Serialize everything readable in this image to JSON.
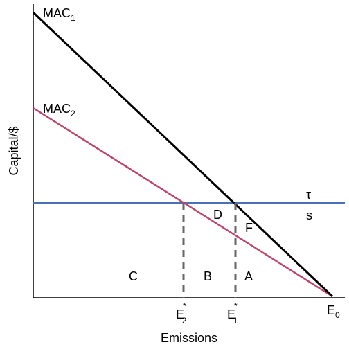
{
  "curves": [
    {
      "label": {
        "text": "MAC",
        "sub": "1"
      }
    },
    {
      "label": {
        "text": "MAC",
        "sub": "2"
      }
    }
  ],
  "price_line": {
    "label": "τ",
    "sublabel": "s"
  },
  "areas": [
    "D",
    "F",
    "C",
    "B",
    "A"
  ],
  "x_points": [
    {
      "text": "E",
      "sup": "*",
      "sub": "2"
    },
    {
      "text": "E",
      "sup": "*",
      "sub": "1"
    },
    {
      "text": "E",
      "sub": "0"
    }
  ],
  "x_axis_label": "Emissions",
  "y_axis_label": "Capital/$"
}
